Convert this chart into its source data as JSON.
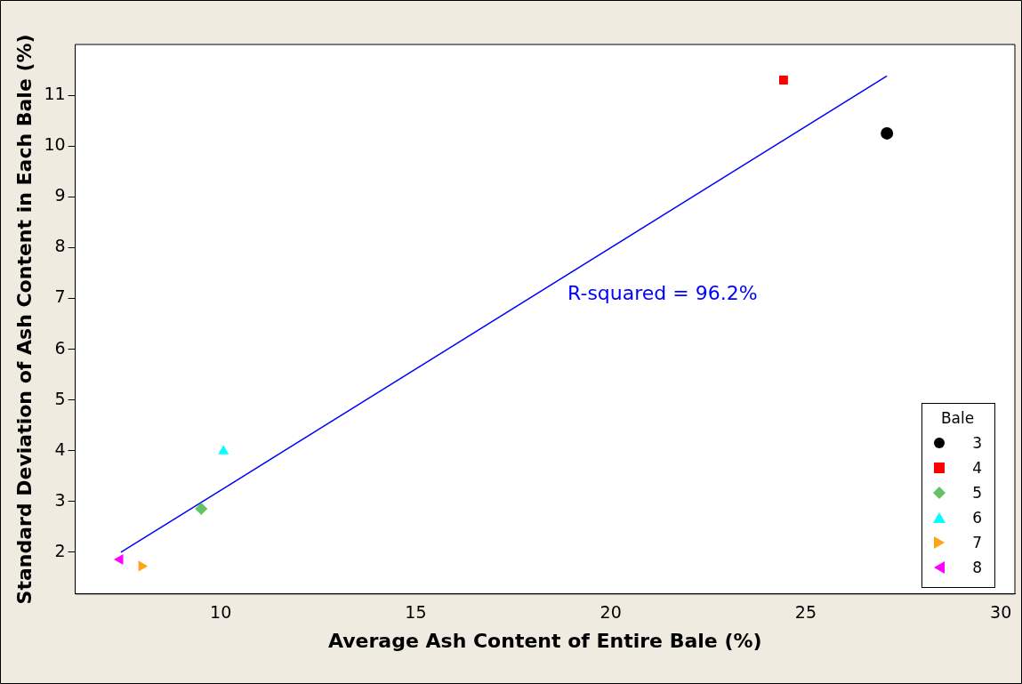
{
  "chart_data": {
    "type": "scatter",
    "xlabel": "Average Ash Content of Entire Bale (%)",
    "ylabel": "Standard Deviation of Ash Content in Each Bale (%)",
    "legend_title": "Bale",
    "legend": "bottom right",
    "xlim": [
      6.27,
      30.36
    ],
    "xticks": [
      10,
      15,
      20,
      25,
      30
    ],
    "ylim": [
      1.18,
      12.0
    ],
    "yticks": [
      2,
      3,
      4,
      5,
      6,
      7,
      8,
      9,
      10,
      11
    ],
    "series": [
      {
        "name": "3",
        "color": "#000000",
        "marker": "circle",
        "x": [
          27.08
        ],
        "values": [
          10.25
        ]
      },
      {
        "name": "4",
        "color": "#ff0000",
        "marker": "square",
        "x": [
          24.43
        ],
        "values": [
          11.3
        ]
      },
      {
        "name": "5",
        "color": "#66c266",
        "marker": "diamond",
        "x": [
          9.5
        ],
        "values": [
          2.86
        ]
      },
      {
        "name": "6",
        "color": "#00ffff",
        "marker": "triangle",
        "x": [
          10.07
        ],
        "values": [
          3.99
        ]
      },
      {
        "name": "7",
        "color": "#ffa31a",
        "marker": "triangle-right",
        "x": [
          7.97
        ],
        "values": [
          1.73
        ]
      },
      {
        "name": "8",
        "color": "#ff00ff",
        "marker": "triangle-left",
        "x": [
          7.42
        ],
        "values": [
          1.86
        ]
      },
      {
        "type": "line",
        "color": "#0000ff",
        "marker": "none",
        "x": [
          7.44,
          27.08
        ],
        "values": [
          2.0,
          11.38
        ]
      }
    ],
    "annotations": [
      "R-squared = 96.2%"
    ]
  }
}
